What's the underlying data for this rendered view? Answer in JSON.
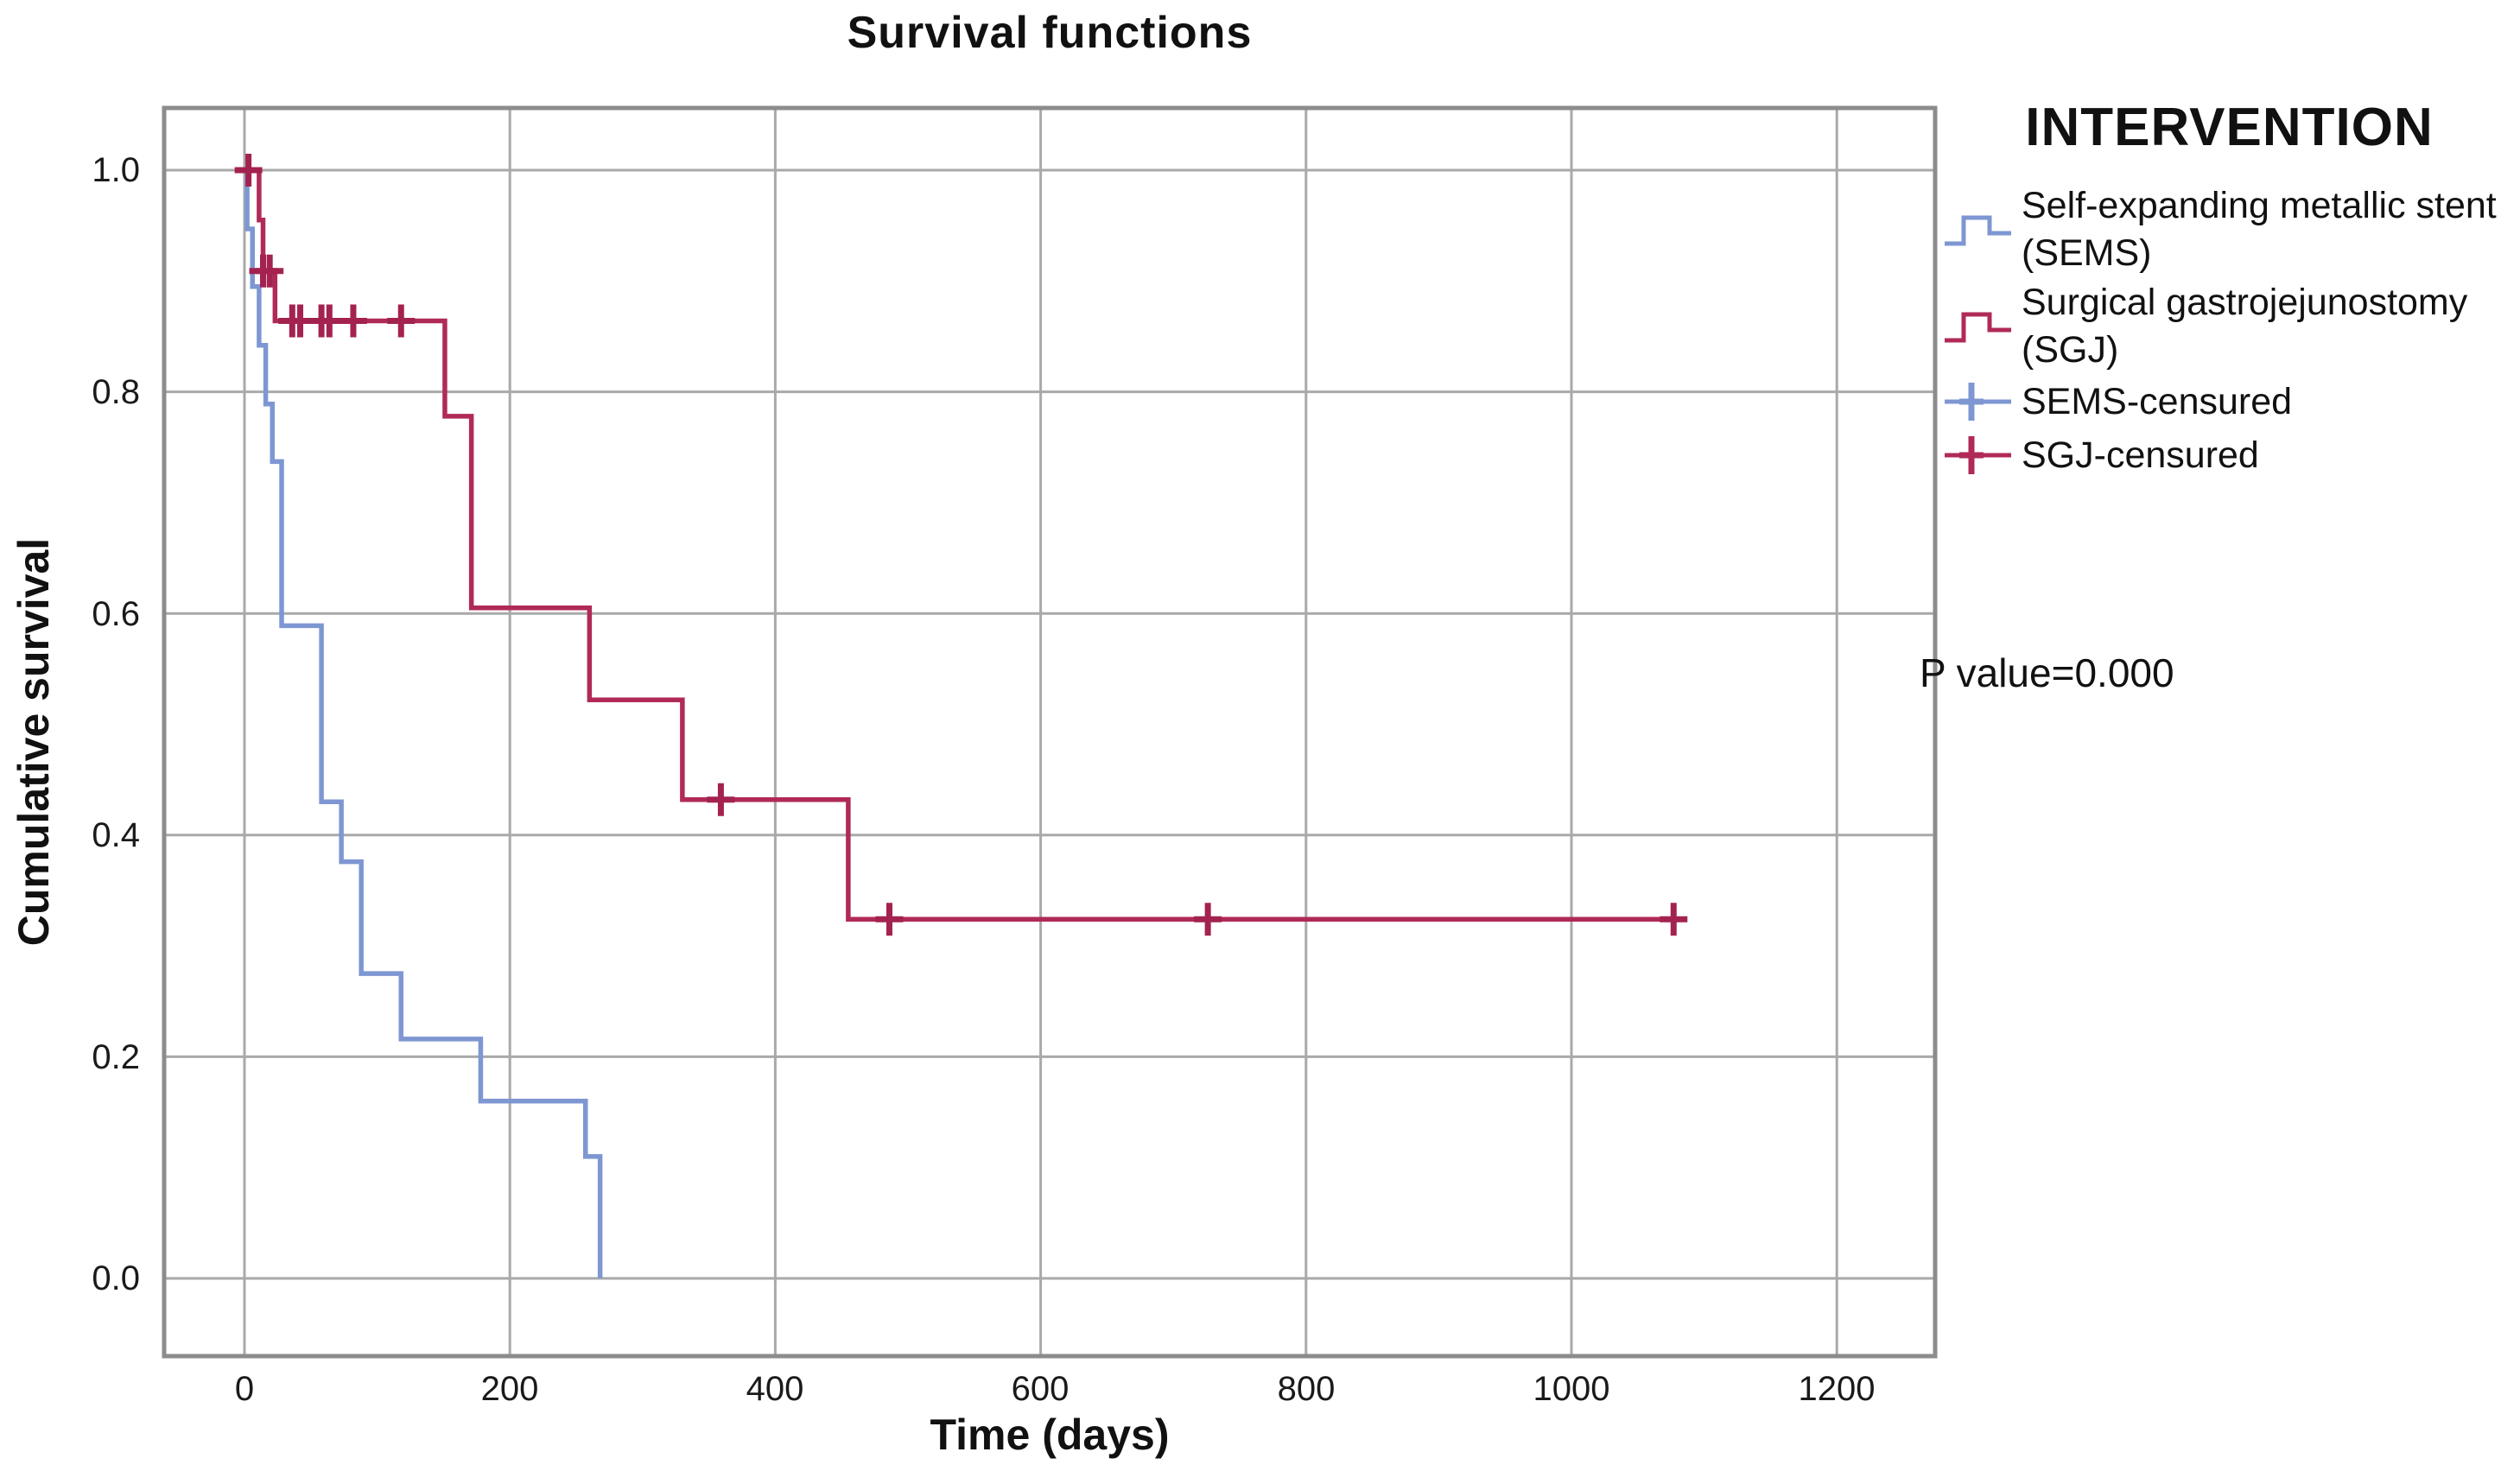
{
  "title": "Survival functions",
  "axes": {
    "x": {
      "label": "Time (days)",
      "ticks": [
        {
          "label": "0",
          "value": 0
        },
        {
          "label": "200",
          "value": 200
        },
        {
          "label": "400",
          "value": 400
        },
        {
          "label": "600",
          "value": 600
        },
        {
          "label": "800",
          "value": 800
        },
        {
          "label": "1000",
          "value": 1000
        },
        {
          "label": "1200",
          "value": 1200
        }
      ]
    },
    "y": {
      "label": "Cumulative survival",
      "ticks": [
        {
          "label": "1.0",
          "value": 1.0
        },
        {
          "label": "0.8",
          "value": 0.8
        },
        {
          "label": "0.6",
          "value": 0.6
        },
        {
          "label": "0.4",
          "value": 0.4
        },
        {
          "label": "0.2",
          "value": 0.2
        },
        {
          "label": "0.0",
          "value": 0.0
        }
      ]
    }
  },
  "legend": {
    "title": "INTERVENTION",
    "items": [
      {
        "line1": "Self-expanding metallic stent",
        "line2": "(SEMS)",
        "type": "step",
        "series_index": 0
      },
      {
        "line1": "Surgical gastrojejunostomy",
        "line2": "(SGJ)",
        "type": "step",
        "series_index": 1
      },
      {
        "line1": "SEMS-censured",
        "line2": "",
        "type": "censor",
        "series_index": 0
      },
      {
        "line1": "SGJ-censured",
        "line2": "",
        "type": "censor",
        "series_index": 1
      }
    ]
  },
  "annotation": {
    "p_value": "P value=0.000"
  },
  "colors": {
    "grid": "#a9a9a9",
    "frame": "#8c8c8c",
    "background": "#ffffff"
  },
  "chart_data": {
    "type": "line",
    "subtype": "kaplan-meier-step",
    "title": "Survival functions",
    "xlabel": "Time (days)",
    "ylabel": "Cumulative survival",
    "xlim": [
      -60,
      1275
    ],
    "ylim": [
      -0.07,
      1.06
    ],
    "grid": true,
    "legend_position": "right",
    "annotation": "P value=0.000",
    "series": [
      {
        "name": "Self-expanding metallic stent (SEMS)",
        "color": "#7e97d3",
        "censor_color": "#7e97d3",
        "steps": [
          [
            0,
            1.0
          ],
          [
            2,
            0.947
          ],
          [
            6,
            0.895
          ],
          [
            11,
            0.842
          ],
          [
            16,
            0.789
          ],
          [
            21,
            0.737
          ],
          [
            28,
            0.589
          ],
          [
            58,
            0.43
          ],
          [
            73,
            0.376
          ],
          [
            88,
            0.275
          ],
          [
            118,
            0.216
          ],
          [
            178,
            0.16
          ],
          [
            257,
            0.11
          ],
          [
            268,
            0.0
          ]
        ],
        "end_day": 268,
        "censors": []
      },
      {
        "name": "Surgical gastrojejunostomy (SGJ)",
        "color": "#b02a58",
        "censor_color": "#a32250",
        "steps": [
          [
            0,
            1.0
          ],
          [
            11,
            0.955
          ],
          [
            14,
            0.909
          ],
          [
            23,
            0.864
          ],
          [
            151,
            0.778
          ],
          [
            171,
            0.605
          ],
          [
            260,
            0.522
          ],
          [
            330,
            0.432
          ],
          [
            455,
            0.324
          ]
        ],
        "end_day": 1085,
        "censors": [
          [
            3,
            1.0
          ],
          [
            14,
            0.909
          ],
          [
            19,
            0.909
          ],
          [
            36,
            0.864
          ],
          [
            42,
            0.864
          ],
          [
            58,
            0.864
          ],
          [
            64,
            0.864
          ],
          [
            82,
            0.864
          ],
          [
            118,
            0.864
          ],
          [
            359,
            0.432
          ],
          [
            486,
            0.324
          ],
          [
            726,
            0.324
          ],
          [
            1077,
            0.324
          ]
        ]
      }
    ]
  }
}
